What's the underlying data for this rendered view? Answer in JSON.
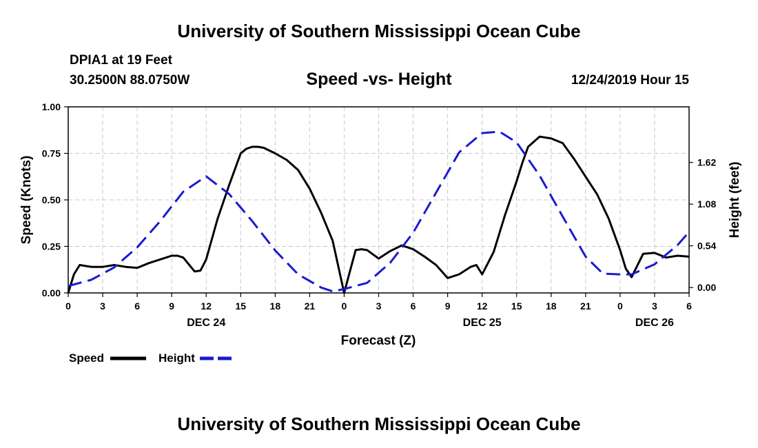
{
  "header": {
    "top_title": "University of Southern Mississippi Ocean Cube",
    "bottom_title": "University of Southern Mississippi Ocean Cube",
    "station": "DPIA1 at 19 Feet",
    "coords": "30.2500N 88.0750W",
    "datetime": "12/24/2019 Hour 15"
  },
  "chart_data": {
    "type": "line",
    "title": "Speed -vs- Height",
    "xlabel": "Forecast (Z)",
    "ylabel": "Speed (Knots)",
    "ylabel_right": "Height (feet)",
    "xlim": [
      0,
      54
    ],
    "ylim": [
      0,
      1.0
    ],
    "ylim_right": [
      -0.07,
      2.34
    ],
    "x_ticks": [
      0,
      3,
      6,
      9,
      12,
      15,
      18,
      21,
      24,
      27,
      30,
      33,
      36,
      39,
      42,
      45,
      48,
      51,
      54
    ],
    "x_tick_labels": [
      "0",
      "3",
      "6",
      "9",
      "12",
      "15",
      "18",
      "21",
      "0",
      "3",
      "6",
      "9",
      "12",
      "15",
      "18",
      "21",
      "0",
      "3",
      "6"
    ],
    "y_ticks": [
      0,
      0.25,
      0.5,
      0.75,
      1.0
    ],
    "y_tick_labels": [
      "0.00",
      "0.25",
      "0.50",
      "0.75",
      "1.00"
    ],
    "y_ticks_right": [
      0.0,
      0.54,
      1.08,
      1.62
    ],
    "y_tick_labels_right": [
      "0.00",
      "0.54",
      "1.08",
      "1.62"
    ],
    "date_labels": [
      {
        "x": 12,
        "label": "DEC 24"
      },
      {
        "x": 36,
        "label": "DEC 25"
      },
      {
        "x": 51,
        "label": "DEC 26"
      }
    ],
    "grid": true,
    "legend": "bottom-left",
    "series": [
      {
        "name": "Speed",
        "axis": "left",
        "color": "#000000",
        "style": "solid",
        "x": [
          0,
          0.5,
          1,
          2,
          3,
          4,
          5,
          6,
          7,
          8,
          9,
          9.5,
          10,
          11,
          11.5,
          12,
          13,
          14,
          15,
          15.5,
          16,
          16.5,
          17,
          18,
          19,
          20,
          21,
          22,
          23,
          24,
          25,
          25.5,
          26,
          27,
          28,
          29,
          30,
          31,
          32,
          33,
          34,
          35,
          35.5,
          36,
          37,
          38,
          39,
          39.5,
          40,
          41,
          42,
          43,
          44,
          45,
          46,
          47,
          48,
          48.5,
          49,
          50,
          51,
          52,
          53,
          54
        ],
        "values": [
          0.0,
          0.1,
          0.15,
          0.14,
          0.14,
          0.15,
          0.14,
          0.135,
          0.16,
          0.18,
          0.2,
          0.2,
          0.19,
          0.115,
          0.12,
          0.18,
          0.4,
          0.58,
          0.75,
          0.775,
          0.785,
          0.785,
          0.78,
          0.75,
          0.715,
          0.66,
          0.56,
          0.43,
          0.28,
          0.0,
          0.23,
          0.235,
          0.23,
          0.185,
          0.225,
          0.255,
          0.235,
          0.195,
          0.15,
          0.08,
          0.1,
          0.14,
          0.15,
          0.1,
          0.22,
          0.42,
          0.6,
          0.7,
          0.785,
          0.84,
          0.83,
          0.805,
          0.72,
          0.625,
          0.53,
          0.4,
          0.23,
          0.13,
          0.085,
          0.21,
          0.215,
          0.19,
          0.2,
          0.195
        ]
      },
      {
        "name": "Height",
        "axis": "right",
        "color": "#1a1ad0",
        "style": "dashed",
        "x": [
          0,
          2,
          4,
          6,
          8,
          10,
          12,
          14,
          16,
          18,
          20,
          22,
          23,
          24,
          26,
          28,
          30,
          32,
          34,
          36,
          37.5,
          39,
          41,
          43,
          45,
          46.5,
          48,
          49,
          51,
          53,
          54
        ],
        "values": [
          0.02,
          0.1,
          0.26,
          0.52,
          0.86,
          1.24,
          1.44,
          1.21,
          0.86,
          0.48,
          0.17,
          0.0,
          -0.05,
          -0.02,
          0.06,
          0.32,
          0.71,
          1.23,
          1.75,
          2.0,
          2.02,
          1.88,
          1.45,
          0.92,
          0.4,
          0.18,
          0.17,
          0.17,
          0.3,
          0.55,
          0.72
        ]
      }
    ]
  }
}
